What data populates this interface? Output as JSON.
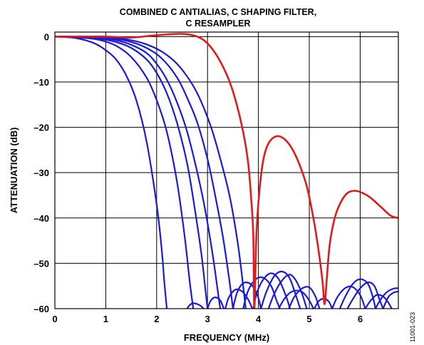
{
  "chart_data": {
    "type": "line",
    "title_line1": "COMBINED C ANTIALIAS, C SHAPING FILTER,",
    "title_line2": "C RESAMPLER",
    "xlabel": "FREQUENCY (MHz)",
    "ylabel": "ATTENUATION (dB)",
    "figure_id": "11001-023",
    "xlim": [
      0,
      6.75
    ],
    "ylim": [
      -60,
      1
    ],
    "xticks": [
      0,
      1,
      2,
      3,
      4,
      5,
      6
    ],
    "yticks": [
      0,
      -10,
      -20,
      -30,
      -40,
      -50,
      -60
    ],
    "ytick_labels": [
      "0",
      "–10",
      "–20",
      "–30",
      "–40",
      "–50",
      "–60"
    ],
    "grid": true,
    "colors": {
      "red_series": "#e31a1c",
      "blue_series": "#1a1adb"
    },
    "series": [
      {
        "color": "red",
        "x": [
          0,
          0.5,
          1.0,
          1.5,
          2.0,
          2.5,
          2.8,
          3.0,
          3.2,
          3.4,
          3.55,
          3.7,
          3.8,
          3.86,
          3.9,
          3.92,
          3.96,
          4.02,
          4.1,
          4.2,
          4.35,
          4.5,
          4.65,
          4.8,
          4.95,
          5.08,
          5.18,
          5.26,
          5.3,
          5.34,
          5.4,
          5.5,
          5.62,
          5.75,
          5.9,
          6.05,
          6.2,
          6.4,
          6.6,
          6.75
        ],
        "y": [
          0,
          0,
          0,
          -0.2,
          0.3,
          0.6,
          0,
          -1.5,
          -4.5,
          -9,
          -14,
          -21,
          -28,
          -36,
          -44,
          -60,
          -44,
          -34,
          -27,
          -23.5,
          -22,
          -22.5,
          -24.5,
          -28,
          -33,
          -40,
          -47,
          -54,
          -59,
          -54,
          -46,
          -40,
          -36.5,
          -34.5,
          -34,
          -34.5,
          -35.5,
          -37.5,
          -39.5,
          -40
        ]
      },
      {
        "color": "blue",
        "x": [
          0,
          0.2,
          0.4,
          0.6,
          0.8,
          1.0,
          1.2,
          1.4,
          1.6,
          1.8,
          2.0,
          2.1,
          2.15,
          2.2
        ],
        "y": [
          0,
          -0.1,
          -0.3,
          -0.8,
          -1.6,
          -3,
          -5,
          -8.5,
          -14,
          -23,
          -37,
          -47,
          -54,
          -60
        ]
      },
      {
        "color": "blue",
        "x": [
          0,
          0.3,
          0.6,
          0.9,
          1.2,
          1.5,
          1.8,
          2.0,
          2.2,
          2.4,
          2.55,
          2.65,
          2.72
        ],
        "y": [
          0,
          -0.1,
          -0.3,
          -0.8,
          -2,
          -4.5,
          -9,
          -14,
          -21,
          -32,
          -44,
          -54,
          -60
        ]
      },
      {
        "color": "blue",
        "x": [
          0,
          0.3,
          0.6,
          0.9,
          1.2,
          1.5,
          1.8,
          2.0,
          2.2,
          2.4,
          2.6,
          2.75,
          2.88,
          2.96,
          3.0
        ],
        "y": [
          0,
          0,
          -0.2,
          -0.5,
          -1.2,
          -2.5,
          -5,
          -8,
          -12.5,
          -19,
          -28,
          -38,
          -48,
          -56,
          -60
        ]
      },
      {
        "color": "blue",
        "x": [
          0,
          0.3,
          0.6,
          0.9,
          1.2,
          1.5,
          1.8,
          2.0,
          2.2,
          2.4,
          2.6,
          2.8,
          2.95,
          3.1,
          3.2,
          3.25
        ],
        "y": [
          0,
          0,
          -0.1,
          -0.3,
          -0.8,
          -1.8,
          -3.6,
          -6,
          -9.5,
          -14.5,
          -21,
          -30,
          -38,
          -48,
          -56,
          -60
        ]
      },
      {
        "color": "blue",
        "x": [
          0,
          0.3,
          0.6,
          0.9,
          1.2,
          1.5,
          1.8,
          2.1,
          2.4,
          2.6,
          2.8,
          3.0,
          3.15,
          3.3,
          3.42,
          3.5
        ],
        "y": [
          0,
          0,
          -0.1,
          -0.2,
          -0.5,
          -1.2,
          -2.5,
          -4.8,
          -9,
          -13.5,
          -19,
          -27,
          -35,
          -44,
          -53,
          -60
        ]
      },
      {
        "color": "blue",
        "x": [
          0,
          0.3,
          0.6,
          0.9,
          1.2,
          1.5,
          1.8,
          2.1,
          2.4,
          2.7,
          2.9,
          3.1,
          3.3,
          3.45,
          3.6,
          3.7,
          3.75
        ],
        "y": [
          0,
          0,
          0,
          -0.1,
          -0.3,
          -0.8,
          -1.7,
          -3.3,
          -6,
          -10.5,
          -15,
          -21,
          -29,
          -36,
          -46,
          -55,
          -60
        ]
      },
      {
        "color": "blue",
        "x": [
          2.6,
          2.65,
          2.72,
          2.8,
          2.88,
          2.92
        ],
        "y": [
          -60,
          -59.2,
          -58.8,
          -59,
          -59.5,
          -60
        ]
      },
      {
        "color": "blue",
        "x": [
          3.0,
          3.06,
          3.15,
          3.25,
          3.32
        ],
        "y": [
          -60,
          -58.3,
          -57.5,
          -58.2,
          -60
        ]
      },
      {
        "color": "blue",
        "x": [
          3.35,
          3.42,
          3.55,
          3.68,
          3.8,
          3.88
        ],
        "y": [
          -60,
          -57.5,
          -55.8,
          -56.2,
          -58,
          -60
        ]
      },
      {
        "color": "blue",
        "x": [
          3.5,
          3.58,
          3.7,
          3.85,
          3.98,
          4.05
        ],
        "y": [
          -60,
          -56.5,
          -54.4,
          -54.6,
          -57,
          -60
        ]
      },
      {
        "color": "blue",
        "x": [
          3.7,
          3.8,
          3.95,
          4.1,
          4.25,
          4.35,
          4.42
        ],
        "y": [
          -60,
          -56,
          -53.5,
          -53.2,
          -55,
          -58,
          -60
        ]
      },
      {
        "color": "blue",
        "x": [
          3.9,
          3.97,
          4.1,
          4.25,
          4.4,
          4.55,
          4.62
        ],
        "y": [
          -60,
          -56.5,
          -53.5,
          -52.2,
          -53.5,
          -57.5,
          -60
        ]
      },
      {
        "color": "blue",
        "x": [
          4.05,
          4.15,
          4.3,
          4.45,
          4.6,
          4.72,
          4.82
        ],
        "y": [
          -60,
          -56.5,
          -53,
          -51.8,
          -53,
          -56.5,
          -60
        ]
      },
      {
        "color": "blue",
        "x": [
          4.2,
          4.3,
          4.45,
          4.6,
          4.72,
          4.85,
          4.95
        ],
        "y": [
          -60,
          -57,
          -54,
          -52.5,
          -53.5,
          -56.5,
          -60
        ]
      },
      {
        "color": "blue",
        "x": [
          4.4,
          4.5,
          4.62,
          4.75,
          4.88,
          5.0,
          5.08
        ],
        "y": [
          -60,
          -58,
          -56.5,
          -56,
          -56.5,
          -58.2,
          -60
        ]
      },
      {
        "color": "blue",
        "x": [
          4.6,
          4.7,
          4.85,
          5.0,
          5.12,
          5.2
        ],
        "y": [
          -60,
          -57.5,
          -55.6,
          -55.3,
          -57.3,
          -60
        ]
      },
      {
        "color": "blue",
        "x": [
          5.1,
          5.18,
          5.28,
          5.38,
          5.45
        ],
        "y": [
          -60,
          -58.4,
          -57.8,
          -58.4,
          -60
        ]
      },
      {
        "color": "blue",
        "x": [
          5.45,
          5.55,
          5.7,
          5.85,
          6.0,
          6.1
        ],
        "y": [
          -60,
          -57.5,
          -55.5,
          -55.2,
          -57,
          -60
        ]
      },
      {
        "color": "blue",
        "x": [
          5.6,
          5.7,
          5.85,
          6.0,
          6.15,
          6.25,
          6.3
        ],
        "y": [
          -60,
          -57.5,
          -54.6,
          -53.5,
          -54.5,
          -57.5,
          -60
        ]
      },
      {
        "color": "blue",
        "x": [
          5.75,
          5.85,
          6.0,
          6.15,
          6.28,
          6.38,
          6.45
        ],
        "y": [
          -60,
          -58,
          -55.5,
          -54.2,
          -55,
          -58,
          -60
        ]
      },
      {
        "color": "blue",
        "x": [
          6.1,
          6.2,
          6.32,
          6.45,
          6.55,
          6.62
        ],
        "y": [
          -60,
          -58.3,
          -57,
          -57.3,
          -58.6,
          -60
        ]
      },
      {
        "color": "blue",
        "x": [
          6.3,
          6.4,
          6.52,
          6.65,
          6.75
        ],
        "y": [
          -60,
          -58,
          -56.4,
          -55.6,
          -55.5
        ]
      },
      {
        "color": "blue",
        "x": [
          6.45,
          6.55,
          6.65,
          6.75
        ],
        "y": [
          -60,
          -57.5,
          -56.5,
          -56.2
        ]
      }
    ]
  }
}
